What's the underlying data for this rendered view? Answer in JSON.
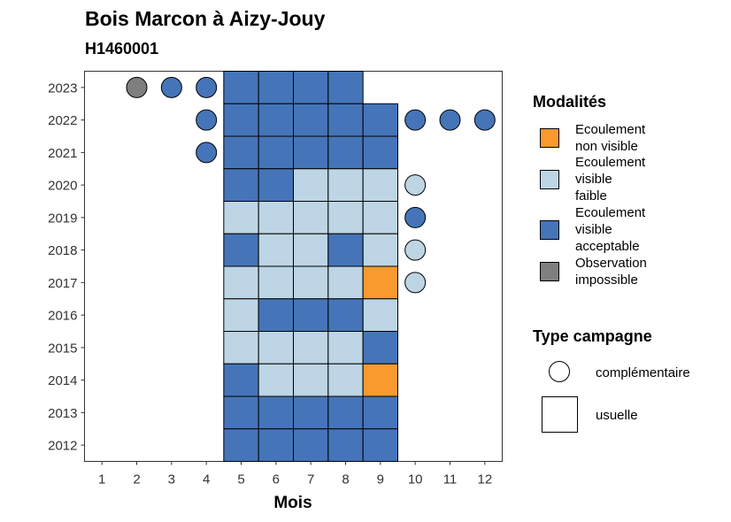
{
  "chart_data": {
    "type": "heatmap",
    "title": "Bois Marcon à Aizy-Jouy",
    "subtitle": "H1460001",
    "xlabel": "Mois",
    "ylabel": "",
    "x_ticks": [
      "1",
      "2",
      "3",
      "4",
      "5",
      "6",
      "7",
      "8",
      "9",
      "10",
      "11",
      "12"
    ],
    "y_ticks": [
      "2012",
      "2013",
      "2014",
      "2015",
      "2016",
      "2017",
      "2018",
      "2019",
      "2020",
      "2021",
      "2022",
      "2023"
    ],
    "xlim": [
      0.5,
      12.5
    ],
    "ylim": [
      2011.5,
      2023.5
    ],
    "modalites": {
      "title": "Modalités",
      "items": [
        {
          "key": "nv",
          "label": "Ecoulement non visible",
          "color": "#F89A2E"
        },
        {
          "key": "vf",
          "label": "Ecoulement visible faible",
          "color": "#BDD5E4"
        },
        {
          "key": "va",
          "label": "Ecoulement visible acceptable",
          "color": "#4575B8"
        },
        {
          "key": "oi",
          "label": "Observation impossible",
          "color": "#7F7F7F"
        }
      ]
    },
    "campagne": {
      "title": "Type campagne",
      "items": [
        {
          "key": "comp",
          "label": "complémentaire",
          "shape": "circle"
        },
        {
          "key": "usu",
          "label": "usuelle",
          "shape": "square"
        }
      ]
    },
    "usuelle": [
      {
        "year": 2023,
        "values": {
          "5": "va",
          "6": "va",
          "7": "va",
          "8": "va"
        }
      },
      {
        "year": 2022,
        "values": {
          "5": "va",
          "6": "va",
          "7": "va",
          "8": "va",
          "9": "va"
        }
      },
      {
        "year": 2021,
        "values": {
          "5": "va",
          "6": "va",
          "7": "va",
          "8": "va",
          "9": "va"
        }
      },
      {
        "year": 2020,
        "values": {
          "5": "va",
          "6": "va",
          "7": "vf",
          "8": "vf",
          "9": "vf"
        }
      },
      {
        "year": 2019,
        "values": {
          "5": "vf",
          "6": "vf",
          "7": "vf",
          "8": "vf",
          "9": "vf"
        }
      },
      {
        "year": 2018,
        "values": {
          "5": "va",
          "6": "vf",
          "7": "vf",
          "8": "va",
          "9": "vf"
        }
      },
      {
        "year": 2017,
        "values": {
          "5": "vf",
          "6": "vf",
          "7": "vf",
          "8": "vf",
          "9": "nv"
        }
      },
      {
        "year": 2016,
        "values": {
          "5": "vf",
          "6": "va",
          "7": "va",
          "8": "va",
          "9": "vf"
        }
      },
      {
        "year": 2015,
        "values": {
          "5": "vf",
          "6": "vf",
          "7": "vf",
          "8": "vf",
          "9": "va"
        }
      },
      {
        "year": 2014,
        "values": {
          "5": "va",
          "6": "vf",
          "7": "vf",
          "8": "vf",
          "9": "nv"
        }
      },
      {
        "year": 2013,
        "values": {
          "5": "va",
          "6": "va",
          "7": "va",
          "8": "va",
          "9": "va"
        }
      },
      {
        "year": 2012,
        "values": {
          "5": "va",
          "6": "va",
          "7": "va",
          "8": "va",
          "9": "va"
        }
      }
    ],
    "complementaire": [
      {
        "year": 2023,
        "month": 2,
        "value": "oi"
      },
      {
        "year": 2023,
        "month": 3,
        "value": "va"
      },
      {
        "year": 2023,
        "month": 4,
        "value": "va"
      },
      {
        "year": 2022,
        "month": 4,
        "value": "va"
      },
      {
        "year": 2022,
        "month": 10,
        "value": "va"
      },
      {
        "year": 2022,
        "month": 11,
        "value": "va"
      },
      {
        "year": 2022,
        "month": 12,
        "value": "va"
      },
      {
        "year": 2021,
        "month": 4,
        "value": "va"
      },
      {
        "year": 2020,
        "month": 10,
        "value": "vf"
      },
      {
        "year": 2019,
        "month": 10,
        "value": "va"
      },
      {
        "year": 2018,
        "month": 10,
        "value": "vf"
      },
      {
        "year": 2017,
        "month": 10,
        "value": "vf"
      }
    ]
  }
}
